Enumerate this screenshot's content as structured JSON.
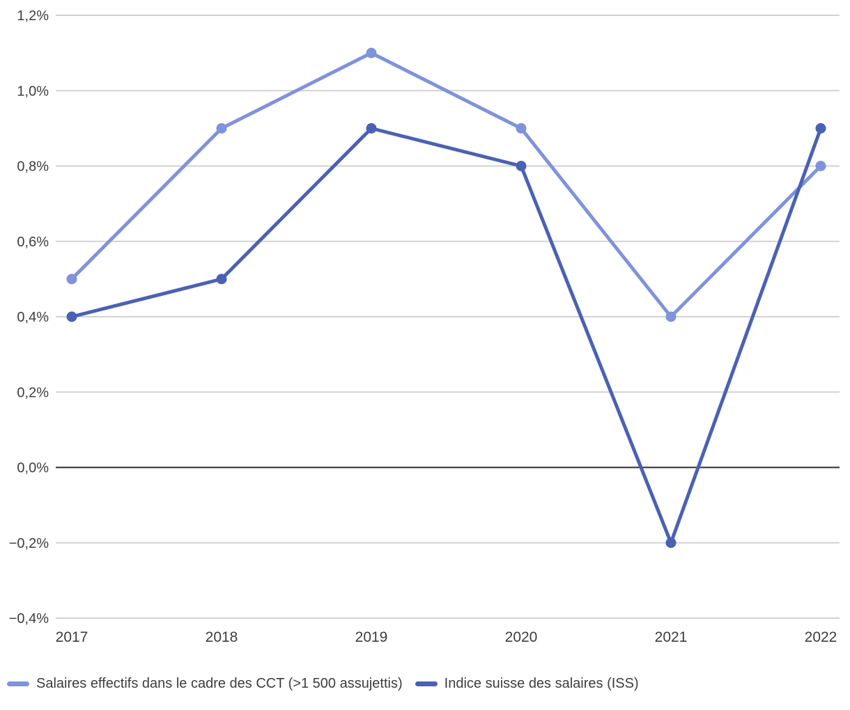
{
  "chart_data": {
    "type": "line",
    "title": "",
    "xlabel": "",
    "ylabel": "",
    "x_labels": [
      "2017",
      "2018",
      "2019",
      "2020",
      "2021",
      "2022"
    ],
    "series": [
      {
        "name": "Salaires effectifs dans le cadre des CCT (>1 500 assujettis)",
        "values": [
          0.5,
          0.9,
          1.1,
          0.9,
          0.4,
          0.8
        ],
        "color": "#7E93DB"
      },
      {
        "name": "Indice suisse des salaires (ISS)",
        "values": [
          0.4,
          0.5,
          0.9,
          0.8,
          -0.2,
          0.9
        ],
        "color": "#4A61B4"
      }
    ],
    "ylim": [
      -0.4,
      1.2
    ],
    "yticks": [
      {
        "value": 1.2,
        "label": "1,2%"
      },
      {
        "value": 1.0,
        "label": "1,0%"
      },
      {
        "value": 0.8,
        "label": "0,8%"
      },
      {
        "value": 0.6,
        "label": "0,6%"
      },
      {
        "value": 0.4,
        "label": "0,4%"
      },
      {
        "value": 0.2,
        "label": "0,2%"
      },
      {
        "value": 0.0,
        "label": "0,0%"
      },
      {
        "value": -0.2,
        "label": "−0,2%"
      },
      {
        "value": -0.4,
        "label": "−0,4%"
      }
    ],
    "grid": true,
    "legend_position": "bottom",
    "colors": {
      "background": "#ffffff",
      "gridline": "#d2d2d2",
      "zero_line": "#2b2b2e",
      "tick_text": "#3d3d3d"
    }
  }
}
